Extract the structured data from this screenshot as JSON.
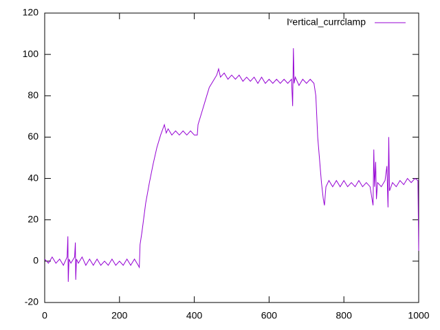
{
  "chart_data": {
    "type": "line",
    "xlim": [
      0,
      1000
    ],
    "xticks": [
      0,
      200,
      400,
      600,
      800,
      1000
    ],
    "ylim": [
      -20,
      120
    ],
    "yticks": [
      -20,
      0,
      20,
      40,
      60,
      80,
      100,
      120
    ],
    "grid": false,
    "legend": "top-right",
    "x": [
      0,
      10,
      20,
      30,
      40,
      50,
      60,
      62,
      63,
      65,
      70,
      80,
      82,
      83,
      85,
      90,
      100,
      110,
      120,
      130,
      140,
      150,
      160,
      170,
      180,
      190,
      200,
      210,
      220,
      230,
      240,
      250,
      253,
      255,
      260,
      270,
      280,
      290,
      300,
      310,
      320,
      325,
      330,
      340,
      350,
      360,
      370,
      380,
      390,
      400,
      408,
      410,
      420,
      430,
      440,
      450,
      460,
      465,
      470,
      480,
      490,
      500,
      510,
      520,
      530,
      540,
      550,
      560,
      570,
      580,
      590,
      600,
      610,
      620,
      630,
      640,
      650,
      660,
      663,
      665,
      667,
      670,
      680,
      690,
      700,
      710,
      720,
      725,
      730,
      740,
      745,
      748,
      752,
      760,
      770,
      780,
      790,
      800,
      810,
      820,
      830,
      840,
      850,
      860,
      870,
      878,
      880,
      882,
      885,
      887,
      890,
      900,
      910,
      915,
      918,
      920,
      922,
      930,
      940,
      950,
      960,
      970,
      980,
      990,
      998,
      1000
    ],
    "series": [
      {
        "name": "Iᵛertical_currclamp",
        "color": "#9400d3",
        "values": [
          1,
          -1,
          2,
          -1,
          1,
          -2,
          2,
          12,
          -10,
          1,
          -1,
          2,
          9,
          -9,
          1,
          -1,
          2,
          -2,
          1,
          -2,
          1,
          -2,
          0,
          -2,
          1,
          -2,
          0,
          -2,
          1,
          -2,
          1,
          -2,
          -3,
          8,
          14,
          28,
          38,
          47,
          55,
          61,
          66,
          62,
          64,
          61,
          63,
          61,
          63,
          61,
          63,
          61,
          61,
          66,
          72,
          78,
          84,
          87,
          90,
          93,
          89,
          91,
          88,
          90,
          88,
          90,
          87,
          89,
          87,
          89,
          86,
          89,
          86,
          88,
          86,
          88,
          86,
          88,
          86,
          88,
          75,
          103,
          86,
          89,
          85,
          88,
          86,
          88,
          86,
          80,
          60,
          38,
          30,
          27,
          36,
          39,
          36,
          39,
          36,
          39,
          36,
          38,
          36,
          39,
          36,
          38,
          36,
          27,
          54,
          36,
          48,
          30,
          38,
          36,
          39,
          46,
          26,
          60,
          34,
          38,
          36,
          39,
          37,
          40,
          38,
          40,
          39,
          5
        ]
      }
    ]
  }
}
